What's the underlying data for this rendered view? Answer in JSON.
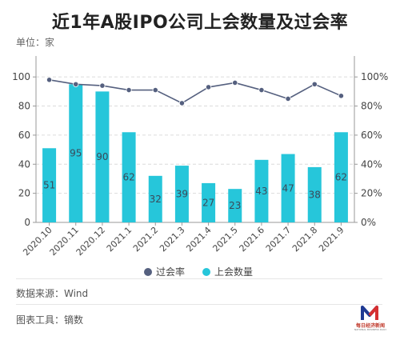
{
  "title": "近1年A股IPO公司上会数量及过会率",
  "unit_label": "单位：家",
  "source_label": "数据来源：Wind",
  "tool_label": "图表工具：镝数",
  "logo": {
    "name": "每日经济新闻",
    "sub": "NATIONAL BUSINESS DAILY"
  },
  "colors": {
    "bar": "#26c6da",
    "line": "#55607f",
    "grid": "#dcdcdc",
    "axis": "#999999"
  },
  "chart_data": {
    "type": "bar",
    "categories": [
      "2020.10",
      "2020.11",
      "2020.12",
      "2021.1",
      "2021.2",
      "2021.3",
      "2021.4",
      "2021.5",
      "2021.6",
      "2021.7",
      "2021.8",
      "2021.9"
    ],
    "series": [
      {
        "name": "上会数量",
        "type": "bar",
        "axis": "left",
        "values": [
          51,
          95,
          90,
          62,
          32,
          39,
          27,
          23,
          43,
          47,
          38,
          62
        ]
      },
      {
        "name": "过会率",
        "type": "line",
        "axis": "right",
        "values": [
          0.98,
          0.95,
          0.94,
          0.91,
          0.91,
          0.82,
          0.93,
          0.96,
          0.91,
          0.85,
          0.95,
          0.87
        ]
      }
    ],
    "y_left": {
      "ticks": [
        0,
        20,
        40,
        60,
        80,
        100
      ],
      "ylim": [
        0,
        110
      ]
    },
    "y_right": {
      "ticks": [
        "0%",
        "20%",
        "40%",
        "60%",
        "80%",
        "100%"
      ],
      "ylim": [
        0,
        1.1
      ]
    },
    "legend": [
      "过会率",
      "上会数量"
    ],
    "legend_position": "bottom",
    "grid": true
  }
}
